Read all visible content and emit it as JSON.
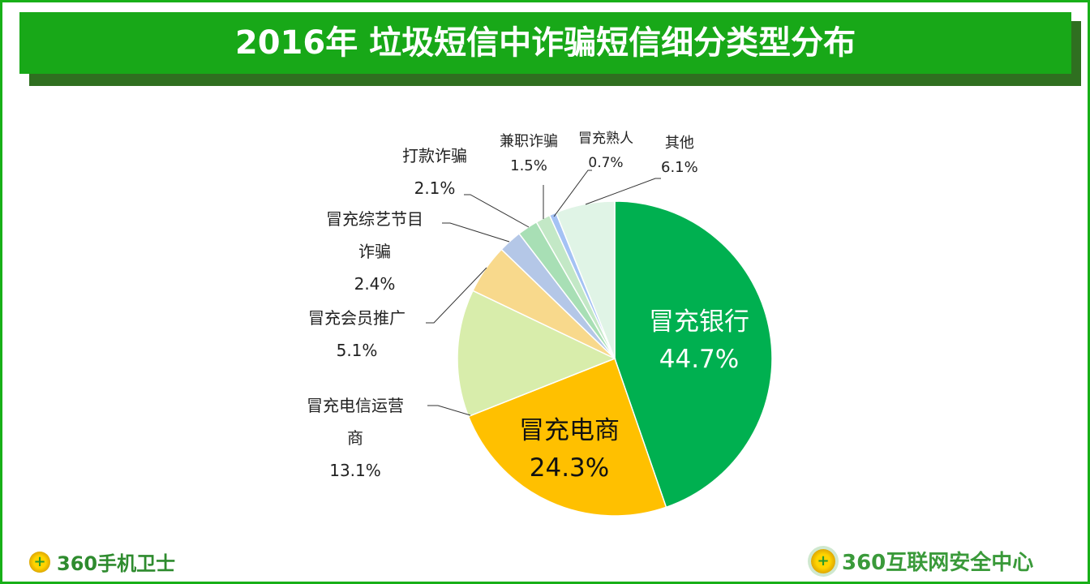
{
  "chart_data": {
    "type": "pie",
    "title": "2016年 垃圾短信中诈骗短信细分类型分布",
    "start": "12 o'clock, clockwise",
    "slices": [
      {
        "label": "冒充银行",
        "value": 44.7,
        "value_label": "44.7%",
        "color": "#00b050"
      },
      {
        "label": "冒充电商",
        "value": 24.3,
        "value_label": "24.3%",
        "color": "#ffc000"
      },
      {
        "label": "冒充电信运营商",
        "label_lines": [
          "冒充电信运营",
          "商"
        ],
        "value": 13.1,
        "value_label": "13.1%",
        "color": "#d8edab"
      },
      {
        "label": "冒充会员推广",
        "value": 5.1,
        "value_label": "5.1%",
        "color": "#f8d98c"
      },
      {
        "label": "冒充综艺节目诈骗",
        "label_lines": [
          "冒充综艺节目",
          "诈骗"
        ],
        "value": 2.4,
        "value_label": "2.4%",
        "color": "#b4c7e7"
      },
      {
        "label": "打款诈骗",
        "value": 2.1,
        "value_label": "2.1%",
        "color": "#a8dfb5"
      },
      {
        "label": "兼职诈骗",
        "value": 1.5,
        "value_label": "1.5%",
        "color": "#c3e8c6"
      },
      {
        "label": "冒充熟人",
        "value": 0.7,
        "value_label": "0.7%",
        "color": "#a4c2f4"
      },
      {
        "label": "其他",
        "value": 6.1,
        "value_label": "6.1%",
        "color": "#e0f4e6"
      }
    ]
  },
  "footer": {
    "left_logo": "360手机卫士",
    "right_logo": "360互联网安全中心",
    "brand_color": "#2e8b2e"
  }
}
